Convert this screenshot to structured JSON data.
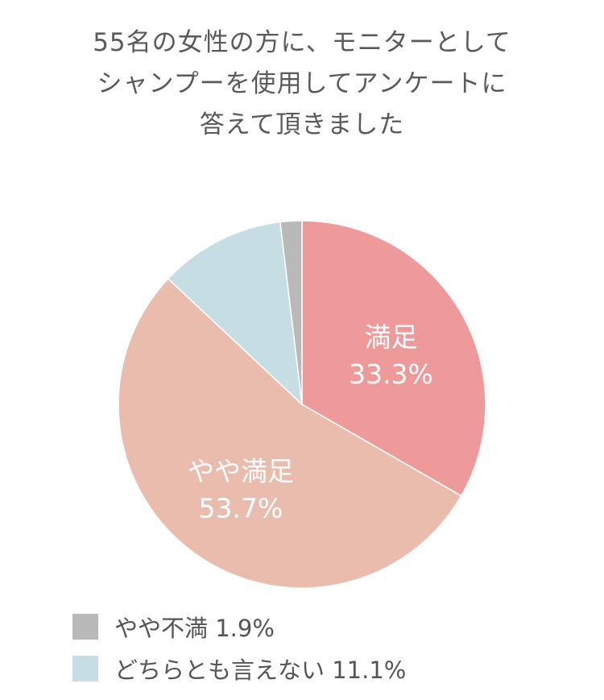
{
  "title_lines": [
    "55名の女性の方に、モニターとして",
    "シャンプーを使用してアンケートに",
    "答えて頂きました"
  ],
  "chart_data": {
    "type": "pie",
    "slices": [
      {
        "name": "満足",
        "value": 33.3,
        "value_label": "33.3%",
        "color": "#ef9a9a",
        "label_inside": true
      },
      {
        "name": "やや満足",
        "value": 53.7,
        "value_label": "53.7%",
        "color": "#e9bcae",
        "label_inside": true
      },
      {
        "name": "どちらとも言えない",
        "value": 11.1,
        "value_label": "11.1%",
        "color": "#c5dde3",
        "label_inside": false
      },
      {
        "name": "やや不満",
        "value": 1.9,
        "value_label": "1.9%",
        "color": "#b9b9b9",
        "label_inside": false
      }
    ],
    "legend": [
      {
        "label": "やや不満 1.9%",
        "color": "#b9b9b9"
      },
      {
        "label": "どちらとも言えない 11.1%",
        "color": "#c5dde3"
      }
    ],
    "legend_position": "bottom-left"
  }
}
